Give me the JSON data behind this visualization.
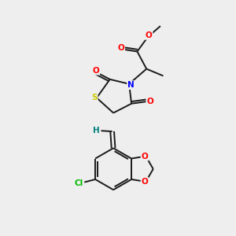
{
  "background_color": "#eeeeee",
  "bond_color": "#1a1a1a",
  "atom_colors": {
    "O": "#ff0000",
    "N": "#0000ff",
    "S": "#cccc00",
    "Cl": "#00bb00",
    "H": "#008080",
    "C": "#1a1a1a"
  },
  "figsize": [
    3.0,
    3.0
  ],
  "dpi": 100
}
